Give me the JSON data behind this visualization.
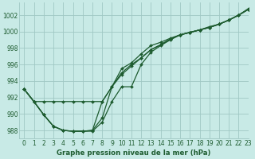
{
  "xlabel": "Graphe pression niveau de la mer (hPa)",
  "background_color": "#c8eae6",
  "grid_color": "#a0c8c4",
  "line_color": "#1e5c30",
  "xlim": [
    -0.5,
    23
  ],
  "ylim": [
    987,
    1003.5
  ],
  "yticks": [
    988,
    990,
    992,
    994,
    996,
    998,
    1000,
    1002
  ],
  "xticks": [
    0,
    1,
    2,
    3,
    4,
    5,
    6,
    7,
    8,
    9,
    10,
    11,
    12,
    13,
    14,
    15,
    16,
    17,
    18,
    19,
    20,
    21,
    22,
    23
  ],
  "series": [
    [
      993.0,
      991.5,
      991.5,
      991.5,
      991.5,
      991.5,
      991.5,
      991.5,
      991.5,
      993.3,
      995.5,
      996.2,
      997.3,
      998.3,
      998.7,
      999.2,
      999.6,
      999.9,
      1000.2,
      1000.6,
      1000.9,
      1001.4,
      1002.0,
      1002.8
    ],
    [
      993.0,
      991.5,
      989.9,
      988.5,
      988.0,
      987.9,
      987.9,
      988.0,
      991.5,
      993.3,
      995.0,
      996.0,
      996.8,
      997.8,
      998.4,
      999.1,
      999.6,
      999.9,
      1000.2,
      1000.5,
      1000.9,
      1001.4,
      1002.0,
      1002.7
    ],
    [
      993.0,
      991.5,
      989.9,
      988.5,
      988.0,
      987.9,
      987.9,
      988.0,
      989.5,
      993.3,
      994.8,
      995.8,
      996.8,
      997.8,
      998.4,
      999.1,
      999.6,
      999.9,
      1000.2,
      1000.5,
      1000.9,
      1001.4,
      1002.0,
      1002.7
    ],
    [
      993.0,
      991.5,
      989.9,
      988.5,
      988.0,
      987.9,
      987.9,
      987.9,
      989.0,
      991.5,
      993.3,
      993.3,
      996.0,
      997.5,
      998.3,
      999.0,
      999.6,
      999.9,
      1000.2,
      1000.5,
      1000.9,
      1001.4,
      1002.0,
      1002.7
    ]
  ]
}
